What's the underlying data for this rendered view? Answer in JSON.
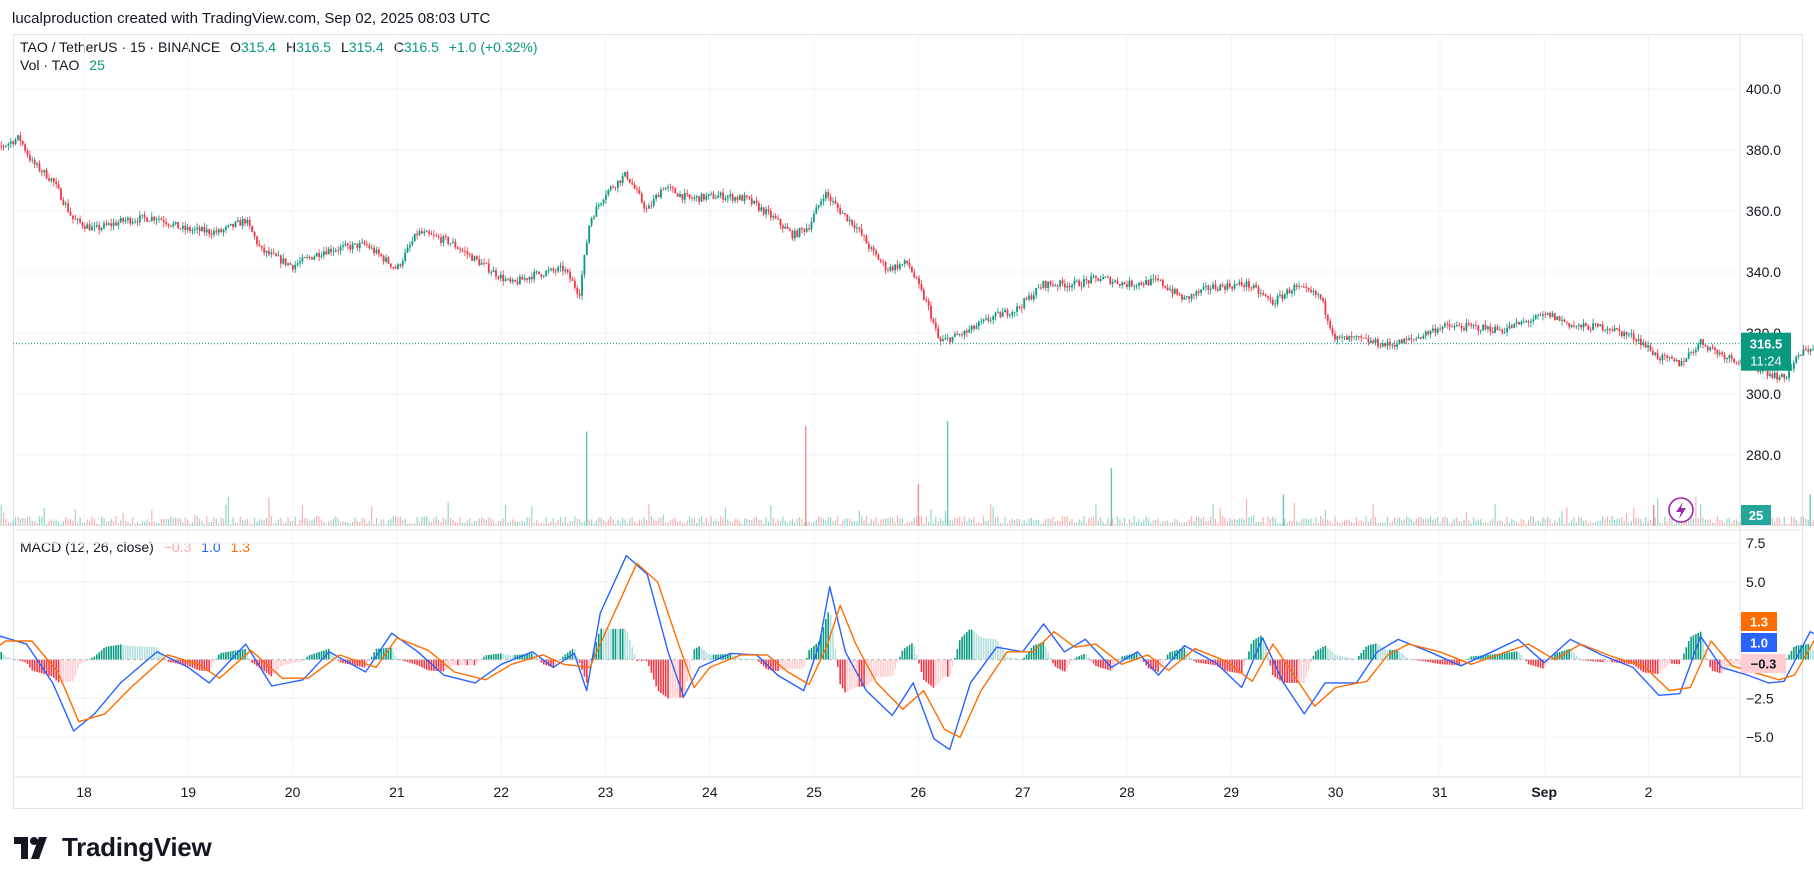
{
  "header": {
    "attribution": "lucalproduction created with TradingView.com, Sep 02, 2025 08:03 UTC"
  },
  "legend": {
    "symbol": "TAO / TetherUS · 15 · BINANCE",
    "o_label": "O",
    "o": "315.4",
    "h_label": "H",
    "h": "316.5",
    "l_label": "L",
    "l": "315.4",
    "c_label": "C",
    "c": "316.5",
    "change": "+1.0 (+0.32%)",
    "vol_label": "Vol · TAO",
    "vol": "25"
  },
  "macd_legend": {
    "label": "MACD (12, 26, close)",
    "hist": "−0.3",
    "macd": "1.0",
    "signal": "1.3"
  },
  "price_badge": {
    "price": "316.5",
    "countdown": "11:24"
  },
  "volume_badge": "25",
  "macd_badges": {
    "signal": "1.3",
    "macd": "1.0",
    "hist": "−0.3"
  },
  "brand": "TradingView",
  "colors": {
    "up": "#089981",
    "down": "#f23645",
    "macd": "#2962ff",
    "signal": "#ff6d00",
    "hist_neg_light": "#ffcdd2",
    "hist_pos_light": "#b2dfdb"
  },
  "chart_data": [
    {
      "type": "candlestick",
      "title": "TAO / TetherUS · 15 · BINANCE",
      "x_ticks": [
        "18",
        "19",
        "20",
        "21",
        "22",
        "23",
        "24",
        "25",
        "26",
        "27",
        "28",
        "29",
        "30",
        "31",
        "Sep",
        "2"
      ],
      "y_ticks": [
        "400.0",
        "380.0",
        "360.0",
        "340.0",
        "320.0",
        "300.0",
        "280.0"
      ],
      "ylim": [
        258,
        409
      ],
      "last_price": 316.5,
      "close_path": [
        {
          "t": 17.0,
          "y": 373
        },
        {
          "t": 17.2,
          "y": 381
        },
        {
          "t": 17.38,
          "y": 384
        },
        {
          "t": 17.5,
          "y": 376
        },
        {
          "t": 17.7,
          "y": 370
        },
        {
          "t": 17.9,
          "y": 357
        },
        {
          "t": 18.1,
          "y": 354
        },
        {
          "t": 18.4,
          "y": 357
        },
        {
          "t": 18.7,
          "y": 358
        },
        {
          "t": 18.95,
          "y": 354
        },
        {
          "t": 19.3,
          "y": 353
        },
        {
          "t": 19.55,
          "y": 357
        },
        {
          "t": 19.7,
          "y": 347
        },
        {
          "t": 20.0,
          "y": 342
        },
        {
          "t": 20.3,
          "y": 347
        },
        {
          "t": 20.7,
          "y": 349
        },
        {
          "t": 21.0,
          "y": 341
        },
        {
          "t": 21.2,
          "y": 353
        },
        {
          "t": 21.5,
          "y": 350
        },
        {
          "t": 21.8,
          "y": 343
        },
        {
          "t": 22.1,
          "y": 336
        },
        {
          "t": 22.3,
          "y": 339
        },
        {
          "t": 22.6,
          "y": 341
        },
        {
          "t": 22.75,
          "y": 333
        },
        {
          "t": 22.85,
          "y": 357
        },
        {
          "t": 23.0,
          "y": 366
        },
        {
          "t": 23.2,
          "y": 372
        },
        {
          "t": 23.4,
          "y": 360
        },
        {
          "t": 23.55,
          "y": 368
        },
        {
          "t": 23.8,
          "y": 364
        },
        {
          "t": 24.1,
          "y": 365
        },
        {
          "t": 24.35,
          "y": 364
        },
        {
          "t": 24.6,
          "y": 358
        },
        {
          "t": 24.8,
          "y": 352
        },
        {
          "t": 24.95,
          "y": 355
        },
        {
          "t": 25.1,
          "y": 366
        },
        {
          "t": 25.25,
          "y": 360
        },
        {
          "t": 25.4,
          "y": 355
        },
        {
          "t": 25.55,
          "y": 347
        },
        {
          "t": 25.7,
          "y": 341
        },
        {
          "t": 25.9,
          "y": 343
        },
        {
          "t": 26.1,
          "y": 328
        },
        {
          "t": 26.2,
          "y": 317
        },
        {
          "t": 26.45,
          "y": 320
        },
        {
          "t": 26.7,
          "y": 325
        },
        {
          "t": 26.95,
          "y": 328
        },
        {
          "t": 27.2,
          "y": 336
        },
        {
          "t": 27.5,
          "y": 336
        },
        {
          "t": 27.75,
          "y": 338
        },
        {
          "t": 28.0,
          "y": 336
        },
        {
          "t": 28.3,
          "y": 337
        },
        {
          "t": 28.55,
          "y": 331
        },
        {
          "t": 28.8,
          "y": 335
        },
        {
          "t": 29.15,
          "y": 336
        },
        {
          "t": 29.4,
          "y": 330
        },
        {
          "t": 29.6,
          "y": 335
        },
        {
          "t": 29.85,
          "y": 332
        },
        {
          "t": 30.0,
          "y": 318
        },
        {
          "t": 30.2,
          "y": 318
        },
        {
          "t": 30.5,
          "y": 316
        },
        {
          "t": 30.75,
          "y": 318
        },
        {
          "t": 31.0,
          "y": 322
        },
        {
          "t": 31.3,
          "y": 322
        },
        {
          "t": 31.6,
          "y": 321
        },
        {
          "t": 31.85,
          "y": 324
        },
        {
          "t": 32.05,
          "y": 326
        },
        {
          "t": 32.3,
          "y": 322
        },
        {
          "t": 32.6,
          "y": 322
        },
        {
          "t": 32.9,
          "y": 318
        },
        {
          "t": 33.1,
          "y": 312
        },
        {
          "t": 33.3,
          "y": 310
        },
        {
          "t": 33.5,
          "y": 317
        },
        {
          "t": 33.7,
          "y": 313
        },
        {
          "t": 33.95,
          "y": 310
        },
        {
          "t": 34.15,
          "y": 307
        },
        {
          "t": 34.3,
          "y": 305
        },
        {
          "t": 34.45,
          "y": 313
        },
        {
          "t": 34.6,
          "y": 316
        },
        {
          "t": 34.8,
          "y": 316.5
        }
      ],
      "volume_spikes": [
        {
          "t": 22.82,
          "v": 90,
          "dir": "up"
        },
        {
          "t": 24.92,
          "v": 95,
          "dir": "down"
        },
        {
          "t": 26.28,
          "v": 100,
          "dir": "up"
        },
        {
          "t": 27.85,
          "v": 55,
          "dir": "up"
        },
        {
          "t": 26.0,
          "v": 40,
          "dir": "down"
        },
        {
          "t": 34.55,
          "v": 30,
          "dir": "up"
        },
        {
          "t": 29.5,
          "v": 30,
          "dir": "up"
        },
        {
          "t": 33.05,
          "v": 20,
          "dir": "down"
        }
      ]
    },
    {
      "type": "line",
      "title": "MACD (12, 26, close)",
      "y_ticks": [
        "7.5",
        "5.0",
        "−2.5",
        "−5.0"
      ],
      "ylim": [
        -8.0,
        8.0
      ],
      "series": [
        {
          "name": "MACD",
          "values": [
            {
              "t": 17.0,
              "y": 0.0
            },
            {
              "t": 17.2,
              "y": 1.5
            },
            {
              "t": 17.45,
              "y": 1.0
            },
            {
              "t": 17.7,
              "y": -1.5
            },
            {
              "t": 17.9,
              "y": -4.6
            },
            {
              "t": 18.1,
              "y": -3.5
            },
            {
              "t": 18.35,
              "y": -1.5
            },
            {
              "t": 18.7,
              "y": 0.5
            },
            {
              "t": 19.0,
              "y": -0.5
            },
            {
              "t": 19.2,
              "y": -1.5
            },
            {
              "t": 19.55,
              "y": 1.0
            },
            {
              "t": 19.8,
              "y": -1.7
            },
            {
              "t": 20.1,
              "y": -1.3
            },
            {
              "t": 20.35,
              "y": 0.5
            },
            {
              "t": 20.7,
              "y": -0.8
            },
            {
              "t": 20.95,
              "y": 1.7
            },
            {
              "t": 21.2,
              "y": 0.5
            },
            {
              "t": 21.45,
              "y": -1.0
            },
            {
              "t": 21.75,
              "y": -1.5
            },
            {
              "t": 22.0,
              "y": -0.3
            },
            {
              "t": 22.3,
              "y": 0.5
            },
            {
              "t": 22.5,
              "y": -0.5
            },
            {
              "t": 22.7,
              "y": 0.4
            },
            {
              "t": 22.82,
              "y": -2.0
            },
            {
              "t": 22.95,
              "y": 3.0
            },
            {
              "t": 23.2,
              "y": 6.7
            },
            {
              "t": 23.4,
              "y": 5.5
            },
            {
              "t": 23.6,
              "y": 0.5
            },
            {
              "t": 23.75,
              "y": -2.4
            },
            {
              "t": 23.9,
              "y": -0.5
            },
            {
              "t": 24.2,
              "y": 0.4
            },
            {
              "t": 24.45,
              "y": 0.3
            },
            {
              "t": 24.65,
              "y": -1.0
            },
            {
              "t": 24.9,
              "y": -2.0
            },
            {
              "t": 25.05,
              "y": 1.0
            },
            {
              "t": 25.15,
              "y": 4.7
            },
            {
              "t": 25.3,
              "y": 0.5
            },
            {
              "t": 25.5,
              "y": -2.0
            },
            {
              "t": 25.75,
              "y": -3.6
            },
            {
              "t": 25.95,
              "y": -1.5
            },
            {
              "t": 26.15,
              "y": -5.1
            },
            {
              "t": 26.3,
              "y": -5.8
            },
            {
              "t": 26.5,
              "y": -1.5
            },
            {
              "t": 26.75,
              "y": 0.8
            },
            {
              "t": 27.0,
              "y": 0.5
            },
            {
              "t": 27.2,
              "y": 2.3
            },
            {
              "t": 27.4,
              "y": 0.5
            },
            {
              "t": 27.6,
              "y": 1.3
            },
            {
              "t": 27.85,
              "y": -0.5
            },
            {
              "t": 28.1,
              "y": 0.5
            },
            {
              "t": 28.3,
              "y": -1.0
            },
            {
              "t": 28.55,
              "y": 0.9
            },
            {
              "t": 28.85,
              "y": -0.2
            },
            {
              "t": 29.1,
              "y": -1.8
            },
            {
              "t": 29.3,
              "y": 1.4
            },
            {
              "t": 29.5,
              "y": -1.5
            },
            {
              "t": 29.7,
              "y": -3.5
            },
            {
              "t": 29.9,
              "y": -1.5
            },
            {
              "t": 30.2,
              "y": -1.5
            },
            {
              "t": 30.4,
              "y": 0.5
            },
            {
              "t": 30.6,
              "y": 1.3
            },
            {
              "t": 30.9,
              "y": 0.5
            },
            {
              "t": 31.2,
              "y": -0.4
            },
            {
              "t": 31.5,
              "y": 0.5
            },
            {
              "t": 31.75,
              "y": 1.3
            },
            {
              "t": 32.0,
              "y": -0.2
            },
            {
              "t": 32.25,
              "y": 1.3
            },
            {
              "t": 32.55,
              "y": 0.3
            },
            {
              "t": 32.85,
              "y": -0.5
            },
            {
              "t": 33.1,
              "y": -2.3
            },
            {
              "t": 33.3,
              "y": -2.2
            },
            {
              "t": 33.5,
              "y": 1.5
            },
            {
              "t": 33.7,
              "y": -0.5
            },
            {
              "t": 33.95,
              "y": -1.0
            },
            {
              "t": 34.15,
              "y": -1.5
            },
            {
              "t": 34.3,
              "y": -1.4
            },
            {
              "t": 34.55,
              "y": 1.8
            },
            {
              "t": 34.8,
              "y": 1.0
            }
          ]
        },
        {
          "name": "Signal",
          "values": [
            {
              "t": 17.0,
              "y": 0.0
            },
            {
              "t": 17.25,
              "y": 1.2
            },
            {
              "t": 17.5,
              "y": 1.2
            },
            {
              "t": 17.75,
              "y": -0.8
            },
            {
              "t": 17.95,
              "y": -4.0
            },
            {
              "t": 18.2,
              "y": -3.5
            },
            {
              "t": 18.45,
              "y": -1.8
            },
            {
              "t": 18.8,
              "y": 0.3
            },
            {
              "t": 19.1,
              "y": -0.3
            },
            {
              "t": 19.3,
              "y": -1.2
            },
            {
              "t": 19.6,
              "y": 0.6
            },
            {
              "t": 19.9,
              "y": -1.2
            },
            {
              "t": 20.15,
              "y": -1.2
            },
            {
              "t": 20.45,
              "y": 0.3
            },
            {
              "t": 20.8,
              "y": -0.5
            },
            {
              "t": 21.0,
              "y": 1.4
            },
            {
              "t": 21.3,
              "y": 0.6
            },
            {
              "t": 21.55,
              "y": -0.8
            },
            {
              "t": 21.85,
              "y": -1.3
            },
            {
              "t": 22.1,
              "y": -0.3
            },
            {
              "t": 22.4,
              "y": 0.3
            },
            {
              "t": 22.6,
              "y": -0.3
            },
            {
              "t": 22.85,
              "y": -0.5
            },
            {
              "t": 23.05,
              "y": 2.5
            },
            {
              "t": 23.3,
              "y": 6.2
            },
            {
              "t": 23.5,
              "y": 5.0
            },
            {
              "t": 23.7,
              "y": 1.0
            },
            {
              "t": 23.85,
              "y": -1.8
            },
            {
              "t": 24.0,
              "y": -0.5
            },
            {
              "t": 24.3,
              "y": 0.3
            },
            {
              "t": 24.55,
              "y": 0.3
            },
            {
              "t": 24.75,
              "y": -0.8
            },
            {
              "t": 24.95,
              "y": -1.6
            },
            {
              "t": 25.12,
              "y": 0.8
            },
            {
              "t": 25.25,
              "y": 3.5
            },
            {
              "t": 25.4,
              "y": 1.0
            },
            {
              "t": 25.6,
              "y": -1.5
            },
            {
              "t": 25.85,
              "y": -3.2
            },
            {
              "t": 26.05,
              "y": -2.0
            },
            {
              "t": 26.25,
              "y": -4.5
            },
            {
              "t": 26.4,
              "y": -5.0
            },
            {
              "t": 26.6,
              "y": -2.0
            },
            {
              "t": 26.85,
              "y": 0.5
            },
            {
              "t": 27.1,
              "y": 0.5
            },
            {
              "t": 27.3,
              "y": 1.8
            },
            {
              "t": 27.5,
              "y": 0.8
            },
            {
              "t": 27.7,
              "y": 1.0
            },
            {
              "t": 27.95,
              "y": -0.3
            },
            {
              "t": 28.2,
              "y": 0.3
            },
            {
              "t": 28.4,
              "y": -0.7
            },
            {
              "t": 28.65,
              "y": 0.7
            },
            {
              "t": 28.95,
              "y": -0.1
            },
            {
              "t": 29.2,
              "y": -1.4
            },
            {
              "t": 29.4,
              "y": 1.0
            },
            {
              "t": 29.6,
              "y": -1.0
            },
            {
              "t": 29.8,
              "y": -3.0
            },
            {
              "t": 30.0,
              "y": -1.8
            },
            {
              "t": 30.3,
              "y": -1.4
            },
            {
              "t": 30.5,
              "y": 0.3
            },
            {
              "t": 30.7,
              "y": 1.0
            },
            {
              "t": 31.0,
              "y": 0.5
            },
            {
              "t": 31.3,
              "y": -0.3
            },
            {
              "t": 31.6,
              "y": 0.4
            },
            {
              "t": 31.85,
              "y": 1.0
            },
            {
              "t": 32.1,
              "y": 0.0
            },
            {
              "t": 32.35,
              "y": 1.0
            },
            {
              "t": 32.65,
              "y": 0.2
            },
            {
              "t": 32.95,
              "y": -0.4
            },
            {
              "t": 33.2,
              "y": -2.0
            },
            {
              "t": 33.4,
              "y": -1.8
            },
            {
              "t": 33.6,
              "y": 1.2
            },
            {
              "t": 33.8,
              "y": -0.4
            },
            {
              "t": 34.05,
              "y": -0.9
            },
            {
              "t": 34.25,
              "y": -1.3
            },
            {
              "t": 34.4,
              "y": -1.0
            },
            {
              "t": 34.62,
              "y": 1.6
            },
            {
              "t": 34.8,
              "y": 1.3
            }
          ]
        }
      ]
    }
  ]
}
